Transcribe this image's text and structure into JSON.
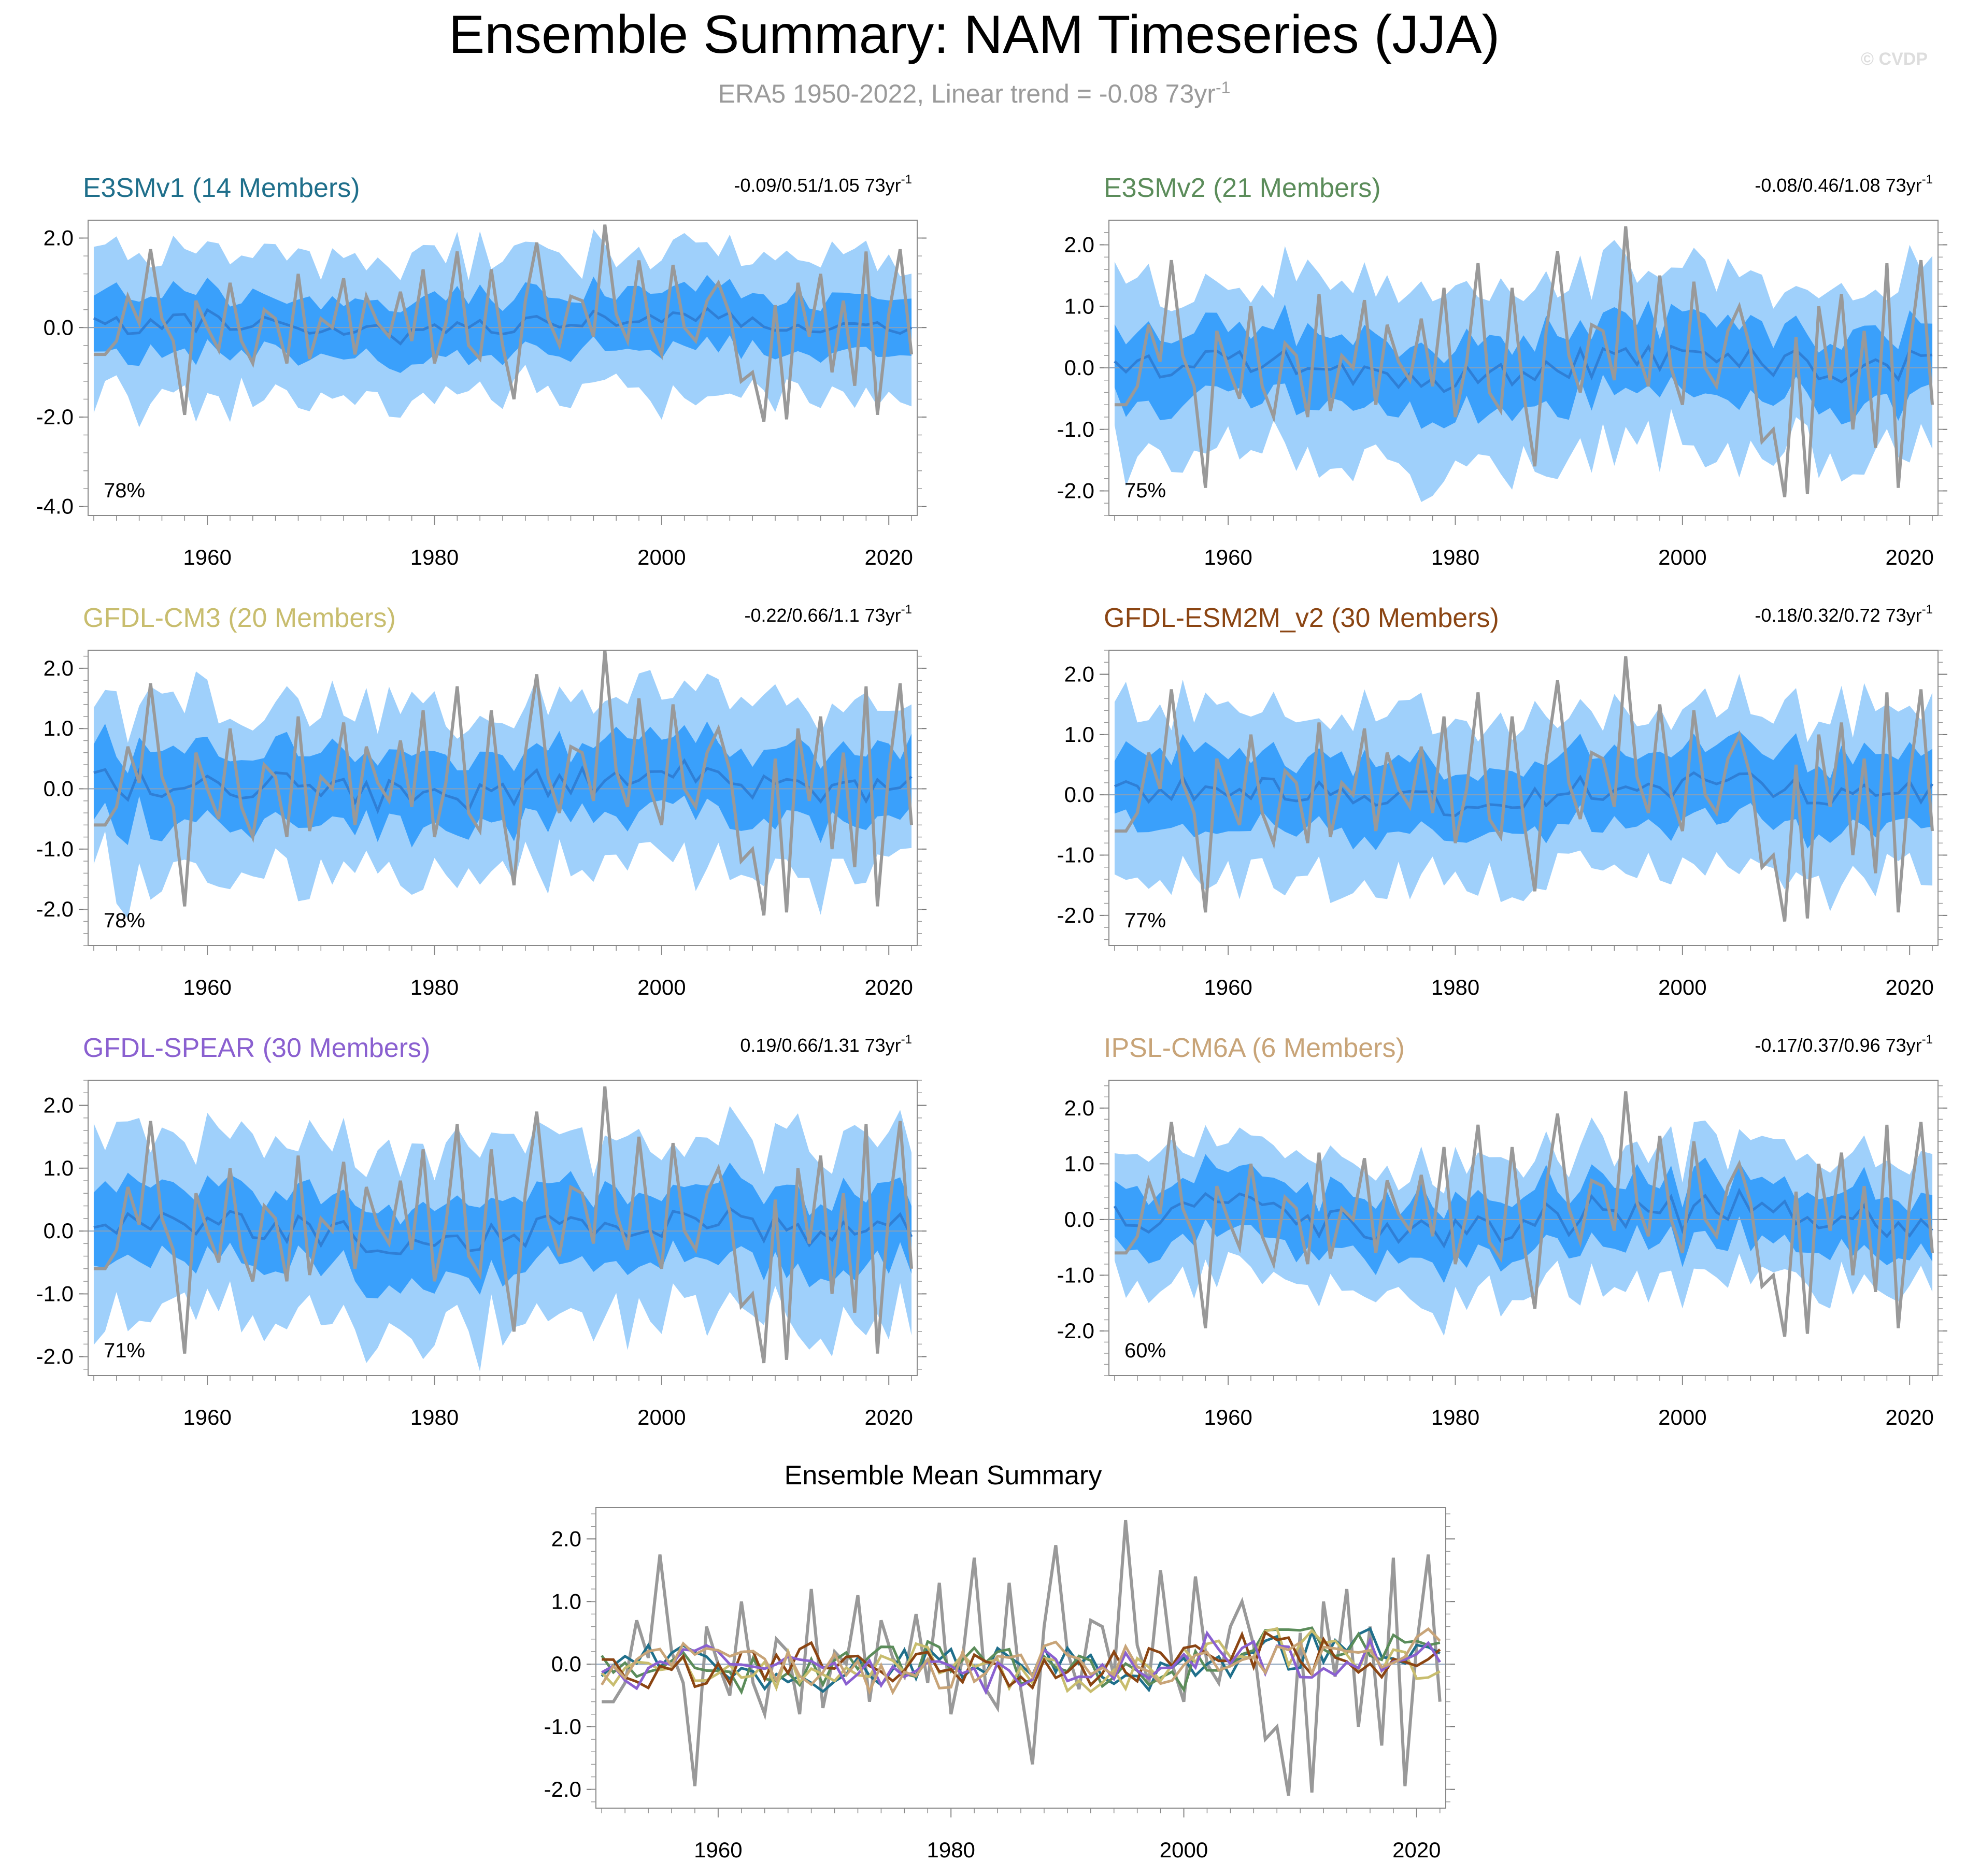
{
  "title": "Ensemble Summary: NAM Timeseries (JJA)",
  "subtitle": {
    "prefix": "ERA5 1950-2022, Linear trend = -0.08 73yr",
    "sup": "-1"
  },
  "watermark": "© CVDP",
  "colors": {
    "outer_band": "#9fd0fb",
    "inner_band": "#3aa0fb",
    "ens_mean": "#2f7fd6",
    "obs": "#999999",
    "zero_line": "#8aa0b8"
  },
  "chart_data": [
    {
      "type": "area",
      "title": "E3SMv1 (14 Members)",
      "title_color": "#1f6f8b",
      "trend_text": "-0.09/0.51/1.05 73yr",
      "trend_sup": "-1",
      "pct_label": "78%",
      "ylim": [
        -4.2,
        2.4
      ],
      "yticks": [
        -4.0,
        -2.0,
        0.0,
        2.0
      ],
      "ytick_labels": [
        "-4.0",
        "-2.0",
        "0.0",
        "2.0"
      ],
      "xlim": [
        1949.5,
        2022.5
      ],
      "xticks": [
        1960,
        1980,
        2000,
        2020
      ],
      "xtick_labels": [
        "1960",
        "1980",
        "2000",
        "2020"
      ],
      "seed": 11,
      "mean_amp": 0.25,
      "inner": 0.65,
      "outer": 1.45,
      "mean_shift": 0.0
    },
    {
      "type": "area",
      "title": "E3SMv2 (21 Members)",
      "title_color": "#5b8c5a",
      "trend_text": "-0.08/0.46/1.08 73yr",
      "trend_sup": "-1",
      "pct_label": "75%",
      "ylim": [
        -2.4,
        2.4
      ],
      "yticks": [
        -2.0,
        -1.0,
        0.0,
        1.0,
        2.0
      ],
      "ytick_labels": [
        "-2.0",
        "-1.0",
        "0.0",
        "1.0",
        "2.0"
      ],
      "xlim": [
        1949.5,
        2022.5
      ],
      "xticks": [
        1960,
        1980,
        2000,
        2020
      ],
      "xtick_labels": [
        "1960",
        "1980",
        "2000",
        "2020"
      ],
      "seed": 23,
      "mean_amp": 0.25,
      "inner": 0.6,
      "outer": 1.3,
      "mean_shift": 0.0
    },
    {
      "type": "area",
      "title": "GFDL-CM3 (20 Members)",
      "title_color": "#c8bd6e",
      "trend_text": "-0.22/0.66/1.1 73yr",
      "trend_sup": "-1",
      "pct_label": "78%",
      "ylim": [
        -2.6,
        2.3
      ],
      "yticks": [
        -2.0,
        -1.0,
        0.0,
        1.0,
        2.0
      ],
      "ytick_labels": [
        "-2.0",
        "-1.0",
        "0.0",
        "1.0",
        "2.0"
      ],
      "xlim": [
        1949.5,
        2022.5
      ],
      "xticks": [
        1960,
        1980,
        2000,
        2020
      ],
      "xtick_labels": [
        "1960",
        "1980",
        "2000",
        "2020"
      ],
      "seed": 37,
      "mean_amp": 0.3,
      "inner": 0.6,
      "outer": 1.3,
      "mean_shift": 0.0
    },
    {
      "type": "area",
      "title": "GFDL-ESM2M_v2 (30 Members)",
      "title_color": "#8b4513",
      "trend_text": "-0.18/0.32/0.72 73yr",
      "trend_sup": "-1",
      "pct_label": "77%",
      "ylim": [
        -2.5,
        2.4
      ],
      "yticks": [
        -2.0,
        -1.0,
        0.0,
        1.0,
        2.0
      ],
      "ytick_labels": [
        "-2.0",
        "-1.0",
        "0.0",
        "1.0",
        "2.0"
      ],
      "xlim": [
        1949.5,
        2022.5
      ],
      "xticks": [
        1960,
        1980,
        2000,
        2020
      ],
      "xtick_labels": [
        "1960",
        "1980",
        "2000",
        "2020"
      ],
      "seed": 41,
      "mean_amp": 0.22,
      "inner": 0.6,
      "outer": 1.25,
      "mean_shift": 0.0
    },
    {
      "type": "area",
      "title": "GFDL-SPEAR (30 Members)",
      "title_color": "#8a60d0",
      "trend_text": "0.19/0.66/1.31 73yr",
      "trend_sup": "-1",
      "pct_label": "71%",
      "ylim": [
        -2.3,
        2.4
      ],
      "yticks": [
        -2.0,
        -1.0,
        0.0,
        1.0,
        2.0
      ],
      "ytick_labels": [
        "-2.0",
        "-1.0",
        "0.0",
        "1.0",
        "2.0"
      ],
      "xlim": [
        1949.5,
        2022.5
      ],
      "xticks": [
        1960,
        1980,
        2000,
        2020
      ],
      "xtick_labels": [
        "1960",
        "1980",
        "2000",
        "2020"
      ],
      "seed": 53,
      "mean_amp": 0.25,
      "inner": 0.6,
      "outer": 1.35,
      "mean_shift": 0.0
    },
    {
      "type": "area",
      "title": "IPSL-CM6A (6 Members)",
      "title_color": "#c8a478",
      "trend_text": "-0.17/0.37/0.96 73yr",
      "trend_sup": "-1",
      "pct_label": "60%",
      "ylim": [
        -2.8,
        2.5
      ],
      "yticks": [
        -2.0,
        -1.0,
        0.0,
        1.0,
        2.0
      ],
      "ytick_labels": [
        "-2.0",
        "-1.0",
        "0.0",
        "1.0",
        "2.0"
      ],
      "xlim": [
        1949.5,
        2022.5
      ],
      "xticks": [
        1960,
        1980,
        2000,
        2020
      ],
      "xtick_labels": [
        "1960",
        "1980",
        "2000",
        "2020"
      ],
      "seed": 67,
      "mean_amp": 0.35,
      "inner": 0.55,
      "outer": 1.0,
      "mean_shift": 0.0
    },
    {
      "type": "line",
      "title": "Ensemble Mean Summary",
      "title_color": "#000000",
      "ylim": [
        -2.3,
        2.5
      ],
      "yticks": [
        -2.0,
        -1.0,
        0.0,
        1.0,
        2.0
      ],
      "ytick_labels": [
        "-2.0",
        "-1.0",
        "0.0",
        "1.0",
        "2.0"
      ],
      "xlim": [
        1949.5,
        2022.5
      ],
      "xticks": [
        1960,
        1980,
        2000,
        2020
      ],
      "xtick_labels": [
        "1960",
        "1980",
        "2000",
        "2020"
      ],
      "series": [
        {
          "name": "ERA5",
          "color": "#999999"
        },
        {
          "name": "E3SMv1",
          "color": "#1f6f8b"
        },
        {
          "name": "E3SMv2",
          "color": "#5b8c5a"
        },
        {
          "name": "GFDL-CM3",
          "color": "#c8bd6e"
        },
        {
          "name": "GFDL-ESM2M_v2",
          "color": "#8b4513"
        },
        {
          "name": "GFDL-SPEAR",
          "color": "#8a60d0"
        },
        {
          "name": "IPSL-CM6A",
          "color": "#c8a478"
        }
      ]
    }
  ],
  "observed": {
    "name": "ERA5",
    "years": [
      1950,
      1951,
      1952,
      1953,
      1954,
      1955,
      1956,
      1957,
      1958,
      1959,
      1960,
      1961,
      1962,
      1963,
      1964,
      1965,
      1966,
      1967,
      1968,
      1969,
      1970,
      1971,
      1972,
      1973,
      1974,
      1975,
      1976,
      1977,
      1978,
      1979,
      1980,
      1981,
      1982,
      1983,
      1984,
      1985,
      1986,
      1987,
      1988,
      1989,
      1990,
      1991,
      1992,
      1993,
      1994,
      1995,
      1996,
      1997,
      1998,
      1999,
      2000,
      2001,
      2002,
      2003,
      2004,
      2005,
      2006,
      2007,
      2008,
      2009,
      2010,
      2011,
      2012,
      2013,
      2014,
      2015,
      2016,
      2017,
      2018,
      2019,
      2020,
      2021,
      2022
    ],
    "values": [
      -0.6,
      -0.6,
      -0.3,
      0.7,
      0.1,
      1.75,
      0.2,
      -0.3,
      -1.95,
      0.6,
      0.0,
      -0.5,
      1.0,
      -0.3,
      -0.8,
      0.4,
      0.2,
      -0.8,
      1.2,
      -0.7,
      0.2,
      0.0,
      1.1,
      -0.6,
      0.7,
      0.1,
      -0.2,
      0.8,
      -0.3,
      1.3,
      -0.8,
      0.1,
      1.7,
      -0.4,
      -0.7,
      1.3,
      -0.4,
      -1.6,
      0.6,
      1.9,
      0.2,
      -0.4,
      0.7,
      0.6,
      -0.2,
      2.3,
      0.3,
      -0.3,
      1.5,
      0.0,
      -0.6,
      1.4,
      0.0,
      -0.3,
      0.6,
      1.0,
      0.3,
      -1.2,
      -1.0,
      -2.1,
      0.5,
      -2.05,
      1.0,
      -0.2,
      1.2,
      -1.0,
      0.6,
      -1.3,
      1.7,
      -1.95,
      0.3,
      1.75,
      -0.6
    ]
  }
}
